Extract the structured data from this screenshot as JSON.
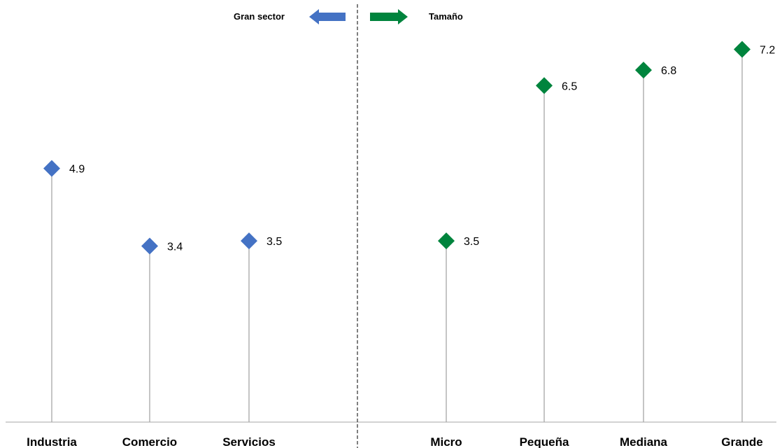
{
  "chart_data": {
    "type": "scatter",
    "subtype": "lollipop",
    "legend": {
      "left_label": "Gran sector",
      "right_label": "Tamaño",
      "left_color": "#4472C4",
      "right_color": "#00843D"
    },
    "ylim": [
      0,
      8
    ],
    "grid": false,
    "groups": [
      {
        "name": "Gran sector",
        "color": "#4472C4",
        "categories": [
          "Industria",
          "Comercio",
          "Servicios"
        ],
        "values": [
          4.9,
          3.4,
          3.5
        ]
      },
      {
        "name": "Tamaño",
        "color": "#00843D",
        "categories": [
          "Micro",
          "Pequeña",
          "Mediana",
          "Grande"
        ],
        "values": [
          3.5,
          6.5,
          6.8,
          7.2
        ]
      }
    ],
    "stem_color": "#A6A6A6",
    "axis_color": "#A6A6A6",
    "divider_color": "#000000"
  }
}
